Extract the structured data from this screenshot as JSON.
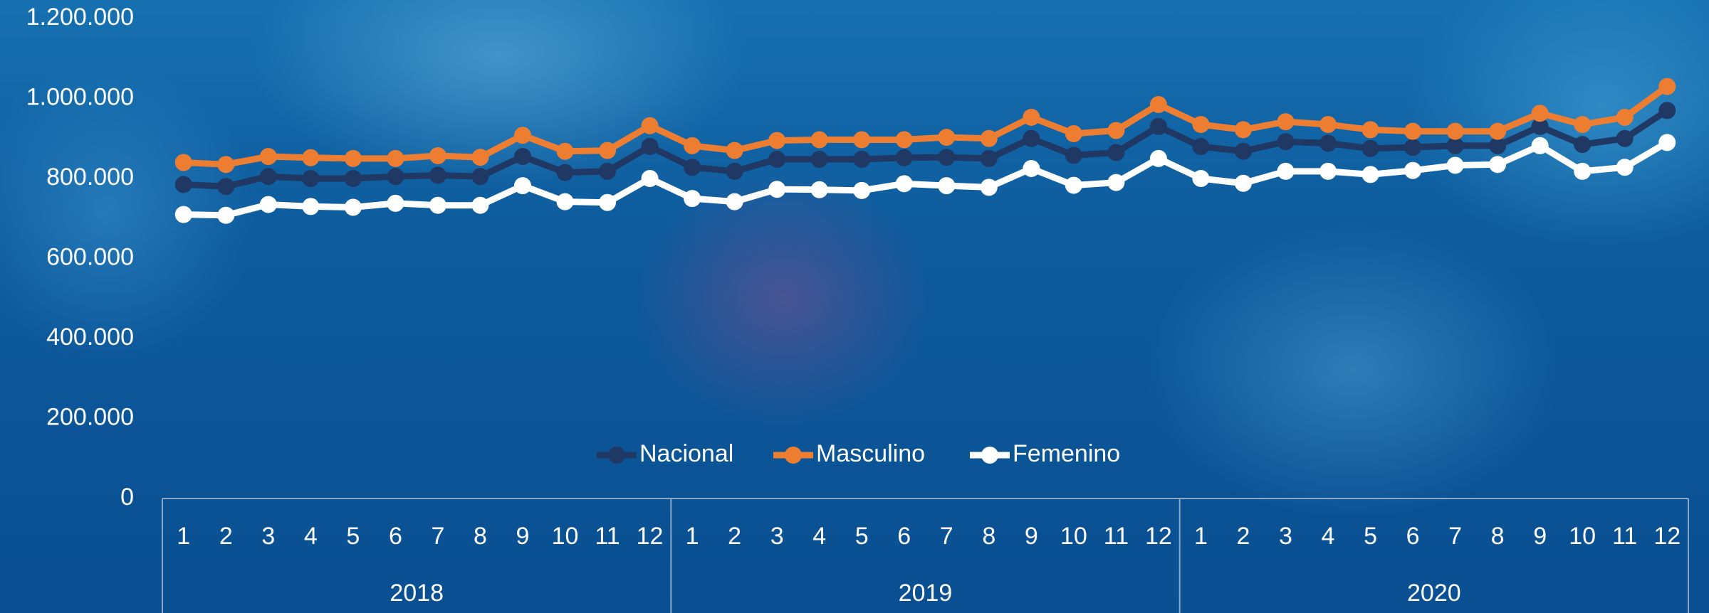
{
  "chart_data": {
    "type": "line",
    "categories": [
      "1",
      "2",
      "3",
      "4",
      "5",
      "6",
      "7",
      "8",
      "9",
      "10",
      "11",
      "12",
      "1",
      "2",
      "3",
      "4",
      "5",
      "6",
      "7",
      "8",
      "9",
      "10",
      "11",
      "12",
      "1",
      "2",
      "3",
      "4",
      "5",
      "6",
      "7",
      "8",
      "9",
      "10",
      "11",
      "12"
    ],
    "category_groups": [
      "2018",
      "2019",
      "2020"
    ],
    "series": [
      {
        "name": "Nacional",
        "color": "#1f3864",
        "values": [
          785000,
          780000,
          805000,
          800000,
          800000,
          805000,
          808000,
          805000,
          855000,
          815000,
          818000,
          880000,
          828000,
          818000,
          848000,
          848000,
          848000,
          852000,
          853000,
          850000,
          900000,
          858000,
          865000,
          930000,
          880000,
          868000,
          892000,
          888000,
          875000,
          878000,
          882000,
          882000,
          930000,
          885000,
          900000,
          970000
        ]
      },
      {
        "name": "Masculino",
        "color": "#ed7d31",
        "values": [
          840000,
          835000,
          855000,
          852000,
          850000,
          850000,
          857000,
          853000,
          908000,
          868000,
          870000,
          932000,
          882000,
          870000,
          895000,
          897000,
          897000,
          897000,
          903000,
          900000,
          953000,
          912000,
          920000,
          985000,
          935000,
          922000,
          942000,
          935000,
          922000,
          918000,
          918000,
          918000,
          963000,
          935000,
          953000,
          1030000
        ]
      },
      {
        "name": "Femenino",
        "color": "#ffffff",
        "values": [
          710000,
          708000,
          735000,
          730000,
          728000,
          738000,
          733000,
          733000,
          782000,
          742000,
          740000,
          800000,
          750000,
          742000,
          773000,
          772000,
          770000,
          787000,
          782000,
          778000,
          825000,
          783000,
          790000,
          850000,
          800000,
          788000,
          818000,
          818000,
          810000,
          820000,
          833000,
          835000,
          882000,
          818000,
          828000,
          890000
        ]
      }
    ],
    "ylim": [
      0,
      1200000
    ],
    "yticks": [
      0,
      {
        "value": 200000,
        "label": "200.000"
      },
      {
        "value": 400000,
        "label": "400.000"
      },
      {
        "value": 600000,
        "label": "600.000"
      },
      {
        "value": 800000,
        "label": "800.000"
      },
      {
        "value": 1000000,
        "label": "1.000.000"
      },
      {
        "value": 1200000,
        "label": "1.200.000"
      }
    ],
    "legend": "bottom"
  }
}
